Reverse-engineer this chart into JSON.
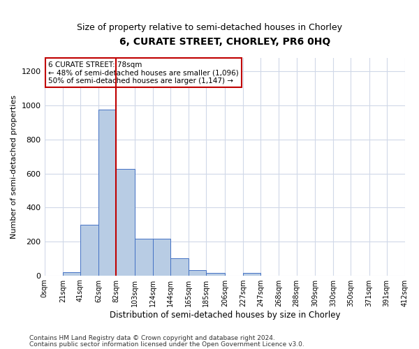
{
  "title": "6, CURATE STREET, CHORLEY, PR6 0HQ",
  "subtitle": "Size of property relative to semi-detached houses in Chorley",
  "xlabel": "Distribution of semi-detached houses by size in Chorley",
  "ylabel": "Number of semi-detached properties",
  "footnote1": "Contains HM Land Registry data © Crown copyright and database right 2024.",
  "footnote2": "Contains public sector information licensed under the Open Government Licence v3.0.",
  "bin_edges": [
    0,
    21,
    41,
    62,
    82,
    103,
    124,
    144,
    165,
    185,
    206,
    227,
    247,
    268,
    288,
    309,
    330,
    350,
    371,
    391,
    412
  ],
  "bin_labels": [
    "0sqm",
    "21sqm",
    "41sqm",
    "62sqm",
    "82sqm",
    "103sqm",
    "124sqm",
    "144sqm",
    "165sqm",
    "185sqm",
    "206sqm",
    "227sqm",
    "247sqm",
    "268sqm",
    "288sqm",
    "309sqm",
    "330sqm",
    "350sqm",
    "371sqm",
    "391sqm",
    "412sqm"
  ],
  "bar_heights": [
    0,
    20,
    300,
    975,
    625,
    215,
    215,
    100,
    30,
    15,
    0,
    15,
    0,
    0,
    0,
    0,
    0,
    0,
    0,
    0
  ],
  "bar_color": "#b8cce4",
  "bar_edge_color": "#4472c4",
  "grid_color": "#d0d8e8",
  "vline_x": 82,
  "vline_color": "#c00000",
  "annotation_text": "6 CURATE STREET: 78sqm\n← 48% of semi-detached houses are smaller (1,096)\n50% of semi-detached houses are larger (1,147) →",
  "annotation_box_color": "#c00000",
  "annotation_box_fill": "#ffffff",
  "ylim": [
    0,
    1280
  ],
  "yticks": [
    0,
    200,
    400,
    600,
    800,
    1000,
    1200
  ],
  "background_color": "#ffffff",
  "title_fontsize": 10,
  "subtitle_fontsize": 9,
  "footnote_fontsize": 6.5
}
